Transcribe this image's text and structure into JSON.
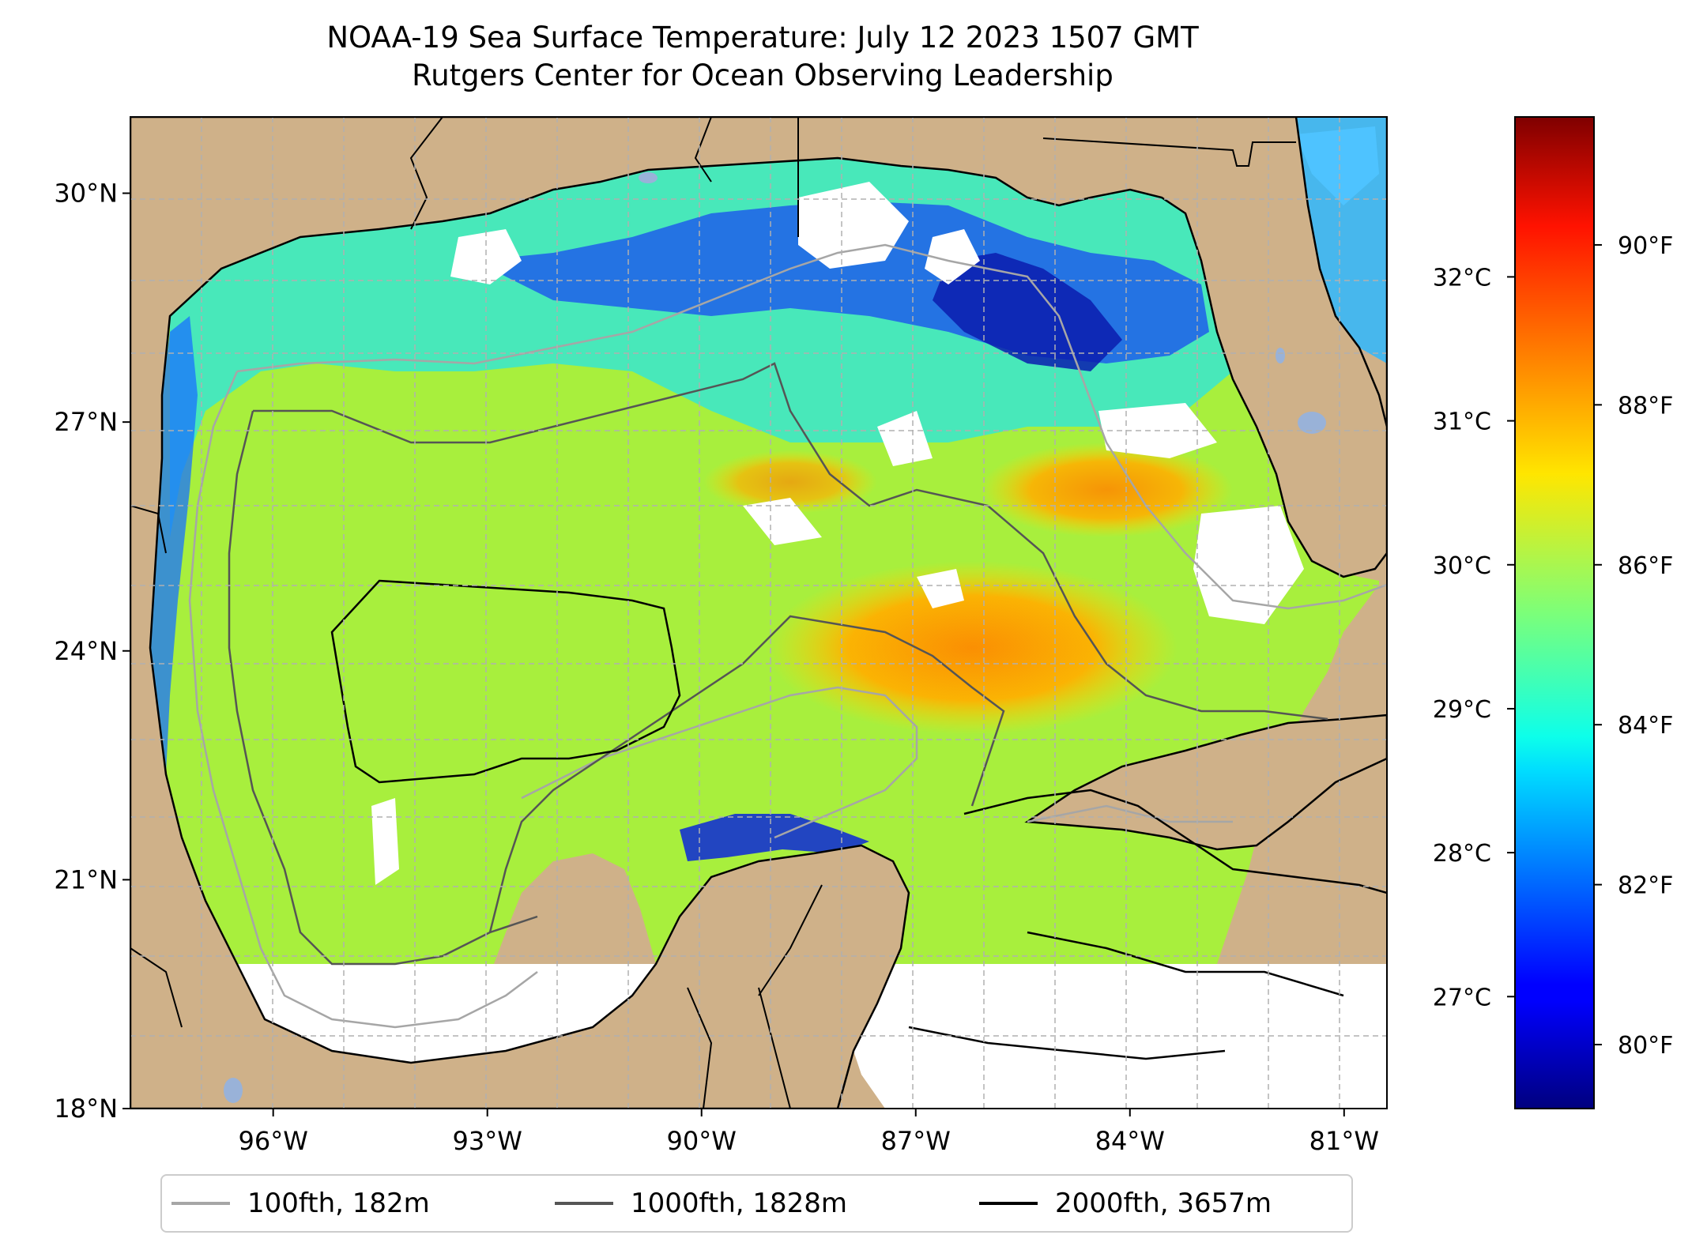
{
  "title": {
    "line1": "NOAA-19 Sea Surface Temperature: July 12 2023 1507 GMT",
    "line2": "Rutgers Center for Ocean Observing Leadership"
  },
  "map": {
    "lon_range": [
      -98.0,
      -80.4
    ],
    "lat_range": [
      18.0,
      31.0
    ],
    "lon_ticks": [
      {
        "value": -96,
        "label": "96°W"
      },
      {
        "value": -93,
        "label": "93°W"
      },
      {
        "value": -90,
        "label": "90°W"
      },
      {
        "value": -87,
        "label": "87°W"
      },
      {
        "value": -84,
        "label": "84°W"
      },
      {
        "value": -81,
        "label": "81°W"
      }
    ],
    "lat_ticks": [
      {
        "value": 30,
        "label": "30°N"
      },
      {
        "value": 27,
        "label": "27°N"
      },
      {
        "value": 24,
        "label": "24°N"
      },
      {
        "value": 21,
        "label": "21°N"
      },
      {
        "value": 18,
        "label": "18°N"
      }
    ],
    "land_color": "#cfb189",
    "no_data_color": "#ffffff",
    "gridlines": true
  },
  "colorbar": {
    "colormap": "jet",
    "fahrenheit_ticks": [
      {
        "value": 80,
        "label": "80°F"
      },
      {
        "value": 82,
        "label": "82°F"
      },
      {
        "value": 84,
        "label": "84°F"
      },
      {
        "value": 86,
        "label": "86°F"
      },
      {
        "value": 88,
        "label": "88°F"
      },
      {
        "value": 90,
        "label": "90°F"
      }
    ],
    "celsius_ticks": [
      {
        "value": 27,
        "label": "27°C"
      },
      {
        "value": 28,
        "label": "28°C"
      },
      {
        "value": 29,
        "label": "29°C"
      },
      {
        "value": 30,
        "label": "30°C"
      },
      {
        "value": 31,
        "label": "31°C"
      },
      {
        "value": 32,
        "label": "32°C"
      }
    ],
    "range_f": [
      79.2,
      91.6
    ]
  },
  "legend": [
    {
      "label": "100fth, 182m",
      "color": "#a6a6a6"
    },
    {
      "label": "1000fth, 1828m",
      "color": "#555555"
    },
    {
      "label": "2000fth, 3657m",
      "color": "#000000"
    }
  ]
}
